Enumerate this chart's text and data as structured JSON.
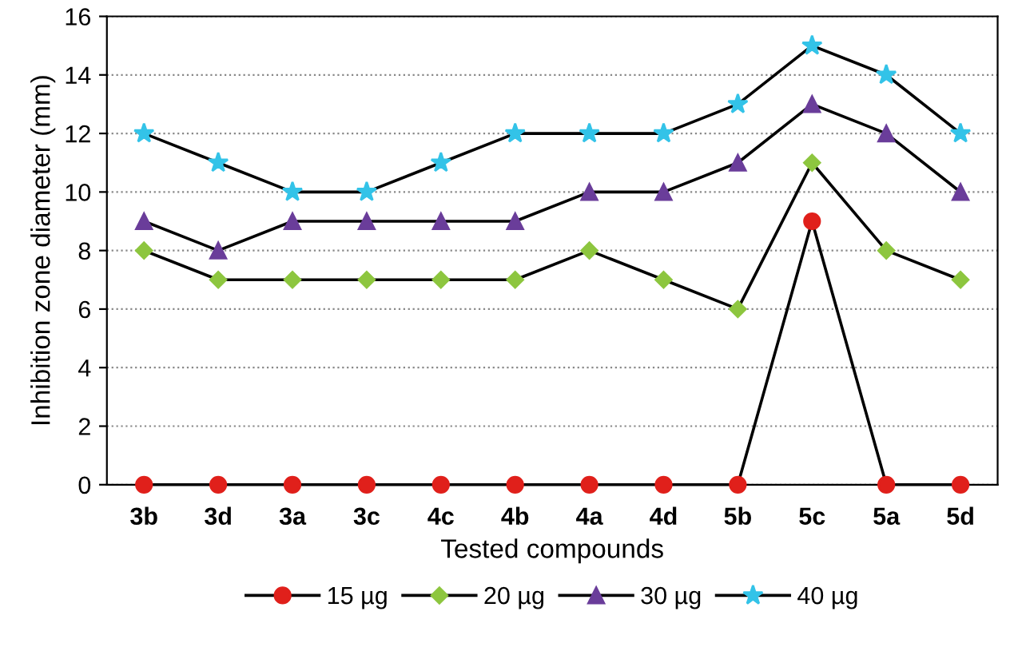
{
  "chart_data": {
    "type": "line",
    "xlabel": "Tested compounds",
    "ylabel": "Inhibition zone diameter (mm)",
    "categories": [
      "3b",
      "3d",
      "3a",
      "3c",
      "4c",
      "4b",
      "4a",
      "4d",
      "5b",
      "5c",
      "5a",
      "5d"
    ],
    "series": [
      {
        "name": "15 µg",
        "color": "#e0201b",
        "marker": "circle",
        "values": [
          0,
          0,
          0,
          0,
          0,
          0,
          0,
          0,
          0,
          9,
          0,
          0
        ]
      },
      {
        "name": "20 µg",
        "color": "#8dc63f",
        "marker": "diamond",
        "values": [
          8,
          7,
          7,
          7,
          7,
          7,
          8,
          7,
          6,
          11,
          8,
          7
        ]
      },
      {
        "name": "30 µg",
        "color": "#6a3d9a",
        "marker": "triangle",
        "values": [
          9,
          8,
          9,
          9,
          9,
          9,
          10,
          10,
          11,
          13,
          12,
          10
        ]
      },
      {
        "name": "40 µg",
        "color": "#33c3e8",
        "marker": "star",
        "values": [
          12,
          11,
          10,
          10,
          11,
          12,
          12,
          12,
          13,
          15,
          14,
          12
        ]
      }
    ],
    "ylim": [
      0,
      16
    ],
    "yticks": [
      0,
      2,
      4,
      6,
      8,
      10,
      12,
      14,
      16
    ],
    "grid": "y",
    "legend": "bottom",
    "line_style": "solid"
  }
}
